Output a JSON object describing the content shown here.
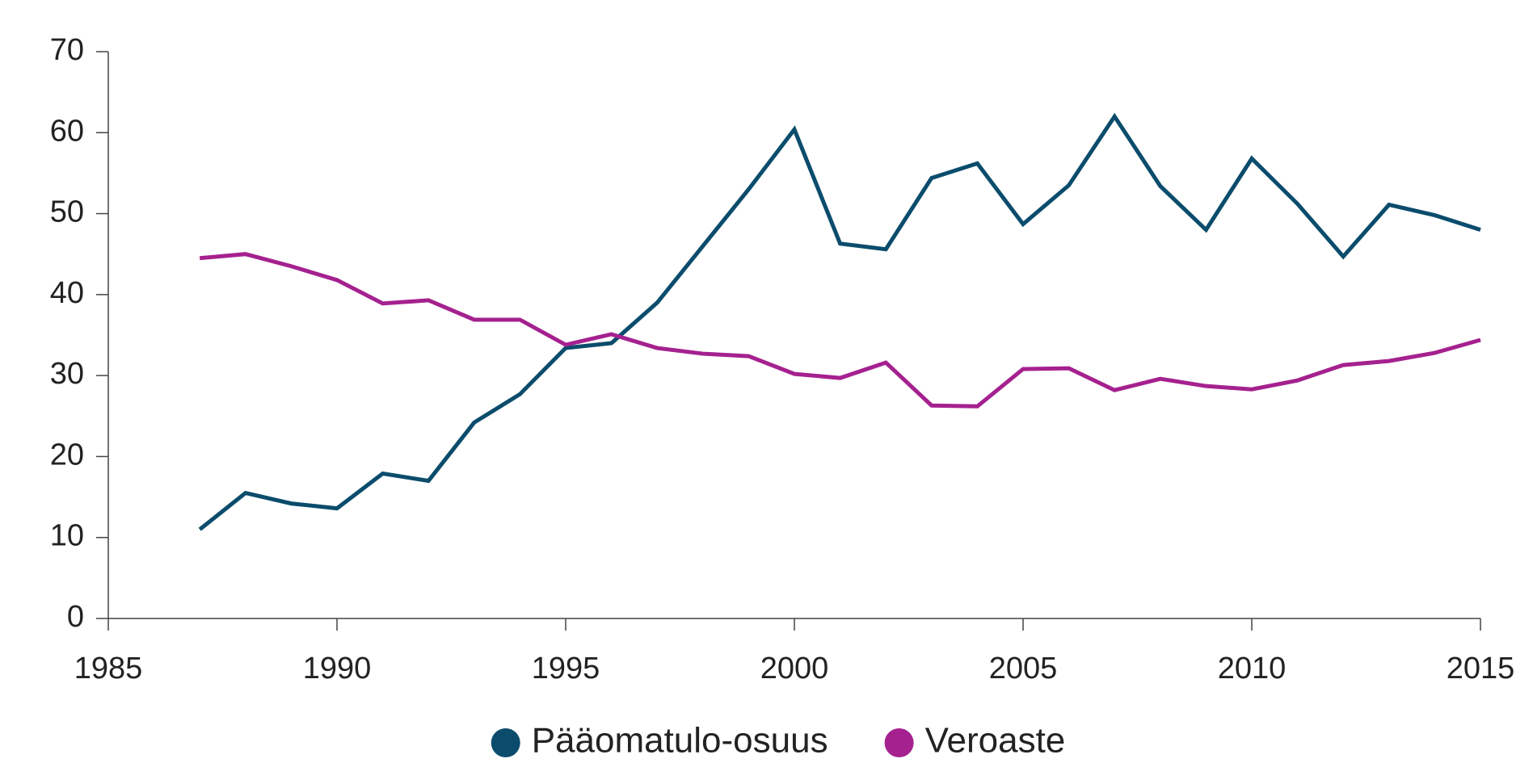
{
  "chart_data": {
    "type": "line",
    "x": [
      1987,
      1988,
      1989,
      1990,
      1991,
      1992,
      1993,
      1994,
      1995,
      1996,
      1997,
      1998,
      1999,
      2000,
      2001,
      2002,
      2003,
      2004,
      2005,
      2006,
      2007,
      2008,
      2009,
      2010,
      2011,
      2012,
      2013,
      2014,
      2015
    ],
    "series": [
      {
        "name": "Pääomatulo-osuus",
        "color": "#0b4c6c",
        "values": [
          11,
          15.5,
          14.2,
          13.6,
          17.9,
          17,
          24.2,
          27.7,
          33.4,
          34,
          39,
          46,
          53,
          60.4,
          46.3,
          45.6,
          54.4,
          56.2,
          48.7,
          53.5,
          62,
          53.4,
          48,
          56.8,
          51.2,
          44.7,
          51.1,
          49.8,
          48
        ]
      },
      {
        "name": "Veroaste",
        "color": "#a5218f",
        "values": [
          44.5,
          45,
          43.5,
          41.8,
          38.9,
          39.3,
          36.9,
          36.9,
          33.8,
          35.1,
          33.4,
          32.7,
          32.4,
          30.2,
          29.7,
          31.6,
          26.3,
          26.2,
          30.8,
          30.9,
          28.2,
          29.6,
          28.7,
          28.3,
          29.4,
          31.3,
          31.8,
          32.8,
          34.4
        ]
      }
    ],
    "xlim": [
      1985,
      2015
    ],
    "xticks": [
      1985,
      1990,
      1995,
      2000,
      2005,
      2010,
      2015
    ],
    "ylim": [
      0,
      70
    ],
    "yticks": [
      0,
      10,
      20,
      30,
      40,
      50,
      60,
      70
    ],
    "grid": false,
    "legend": "bottom"
  }
}
